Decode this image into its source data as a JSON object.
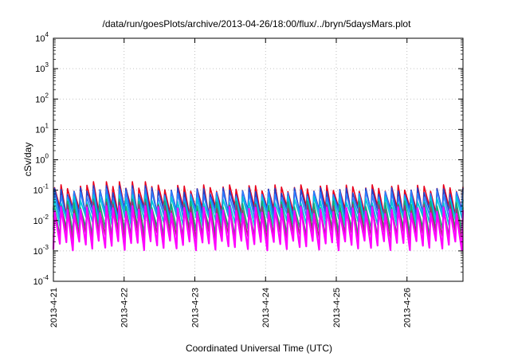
{
  "chart_data": {
    "type": "line",
    "title": "/data/run/goesPlots/archive/2013-04-26/18:00/flux/../bryn/5daysMars.plot",
    "xlabel": "Coordinated Universal Time (UTC)",
    "ylabel": "cSv/day",
    "yscale": "log",
    "ylim": [
      0.0001,
      10000
    ],
    "xlim": [
      "2013-04-21T00:00",
      "2013-04-26T19:00"
    ],
    "grid": true,
    "x_ticks": [
      "2013-4-21",
      "2013-4-22",
      "2013-4-23",
      "2013-4-24",
      "2013-4-25",
      "2013-4-26"
    ],
    "y_ticks": [
      {
        "base": "10",
        "exp": "-4"
      },
      {
        "base": "10",
        "exp": "-3"
      },
      {
        "base": "10",
        "exp": "-2"
      },
      {
        "base": "10",
        "exp": "-1"
      },
      {
        "base": "10",
        "exp": "0"
      },
      {
        "base": "10",
        "exp": "1"
      },
      {
        "base": "10",
        "exp": "2"
      },
      {
        "base": "10",
        "exp": "3"
      },
      {
        "base": "10",
        "exp": "4"
      }
    ],
    "oscillation_period_hours": 2.2,
    "series": [
      {
        "color": "#e8001c",
        "peak": 0.12,
        "trough": 0.022,
        "spike": 0.19
      },
      {
        "color": "#2244cc",
        "peak": 0.095,
        "trough": 0.018,
        "spike": 0.14
      },
      {
        "color": "#2a7fff",
        "peak": 0.075,
        "trough": 0.014,
        "spike": 0.11
      },
      {
        "color": "#00c8d8",
        "peak": 0.05,
        "trough": 0.01,
        "spike": 0.07
      },
      {
        "color": "#1aa870",
        "peak": 0.035,
        "trough": 0.0045,
        "spike": 0.05
      },
      {
        "color": "#a03070",
        "peak": 0.027,
        "trough": 0.0032,
        "spike": 0.04
      },
      {
        "color": "#ff00ff",
        "peak": 0.022,
        "trough": 0.0016,
        "spike": 0.03
      }
    ]
  }
}
